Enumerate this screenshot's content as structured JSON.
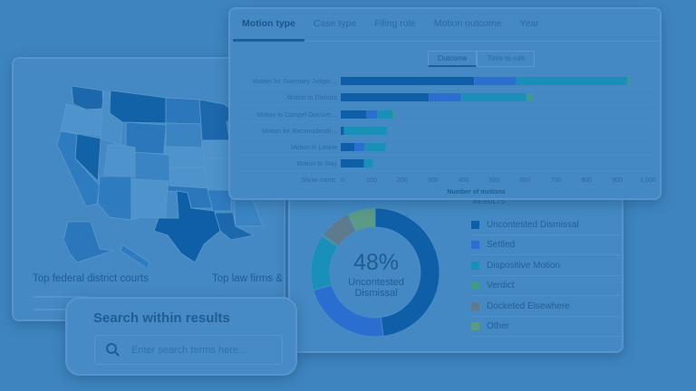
{
  "colors": {
    "background": "#3e85bf",
    "uncontested": "#0f5fa8",
    "settled": "#2a6fd0",
    "dispositive": "#1a8fb8",
    "verdict": "#3f9a8a",
    "docketed": "#5d7a8e",
    "other": "#5b9a86"
  },
  "map_card": {
    "label_left": "Top federal district courts",
    "label_right": "Top law firms &"
  },
  "chart_card": {
    "tabs": [
      {
        "label": "Motion type",
        "active": true
      },
      {
        "label": "Case type"
      },
      {
        "label": "Filing role"
      },
      {
        "label": "Motion outcome"
      },
      {
        "label": "Year"
      }
    ],
    "toggle": {
      "outcome": "Outcome",
      "time_to_rule": "Time to rule"
    },
    "show_more": "Show more"
  },
  "chart_data": {
    "type": "bar",
    "orientation": "horizontal",
    "stacked": true,
    "categories": [
      "Motion for Summary Judgm…",
      "Motion to Dismiss",
      "Motion to Compel Discove…",
      "Motion for Reconsiderati…",
      "Motion in Limine",
      "Motion to Stay"
    ],
    "series": [
      {
        "values": [
          435,
          288,
          85,
          12,
          47,
          77
        ]
      },
      {
        "values": [
          137,
          105,
          35,
          0,
          32,
          0
        ]
      },
      {
        "values": [
          362,
          212,
          50,
          140,
          68,
          28
        ]
      },
      {
        "values": [
          8,
          20,
          8,
          0,
          0,
          0
        ]
      }
    ],
    "xlabel": "Number of motions",
    "xlim": [
      0,
      1000
    ],
    "xticks": [
      "0",
      "100",
      "200",
      "300",
      "400",
      "500",
      "600",
      "700",
      "800",
      "900",
      "1,000"
    ],
    "grid": true
  },
  "donut_card": {
    "center_value": "48%",
    "center_label_1": "Uncontested",
    "center_label_2": "Dismissal",
    "legend_title": "RESULTS",
    "legend": [
      {
        "label": "Uncontested Dismissal",
        "percent": 48
      },
      {
        "label": "Settled",
        "percent": 22.5
      },
      {
        "label": "Dispositive Motion",
        "percent": 14
      },
      {
        "label": "Verdict",
        "percent": 0.5
      },
      {
        "label": "Docketed Elsewhere",
        "percent": 8
      },
      {
        "label": "Other",
        "percent": 7
      }
    ]
  },
  "search_card": {
    "title": "Search within results",
    "placeholder": "Enter search terms here..."
  }
}
